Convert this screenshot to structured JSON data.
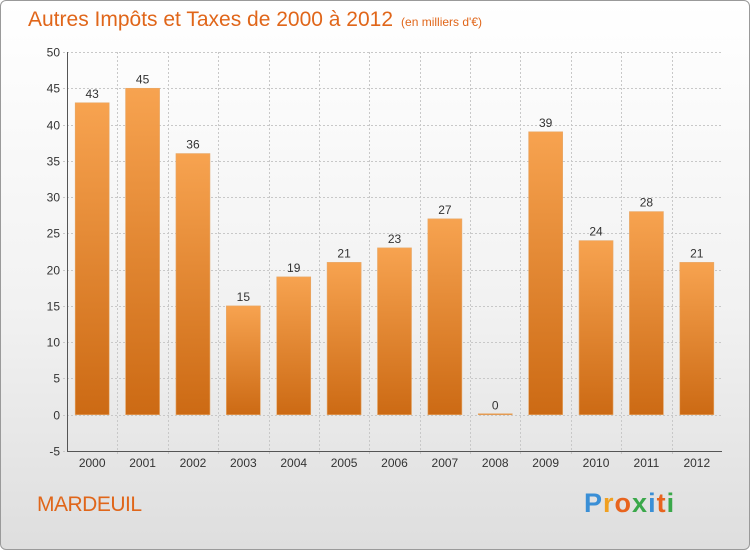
{
  "header": {
    "title": "Autres Impôts et Taxes de 2000 à 2012",
    "unit": "(en milliers d'€)"
  },
  "footer": {
    "commune": "MARDEUIL",
    "brand": "Proxiti"
  },
  "colors": {
    "title": "#e0661a",
    "bar_light": "#f7a350",
    "bar_dark": "#cc6a14",
    "grid": "#c8c8c8",
    "brand_letters": [
      "#3a8fd6",
      "#f0a020",
      "#e8641e",
      "#3aa84a",
      "#3a8fd6",
      "#e8641e",
      "#3aa84a"
    ]
  },
  "chart_data": {
    "type": "bar",
    "categories": [
      "2000",
      "2001",
      "2002",
      "2003",
      "2004",
      "2005",
      "2006",
      "2007",
      "2008",
      "2009",
      "2010",
      "2011",
      "2012"
    ],
    "values": [
      43,
      45,
      36,
      15,
      19,
      21,
      23,
      27,
      0,
      39,
      24,
      28,
      21
    ],
    "title": "Autres Impôts et Taxes de 2000 à 2012",
    "xlabel": "",
    "ylabel": "",
    "ylim": [
      -5,
      50
    ],
    "yticks": [
      -5,
      0,
      5,
      10,
      15,
      20,
      25,
      30,
      35,
      40,
      45,
      50
    ],
    "grid": true,
    "data_labels": true
  }
}
